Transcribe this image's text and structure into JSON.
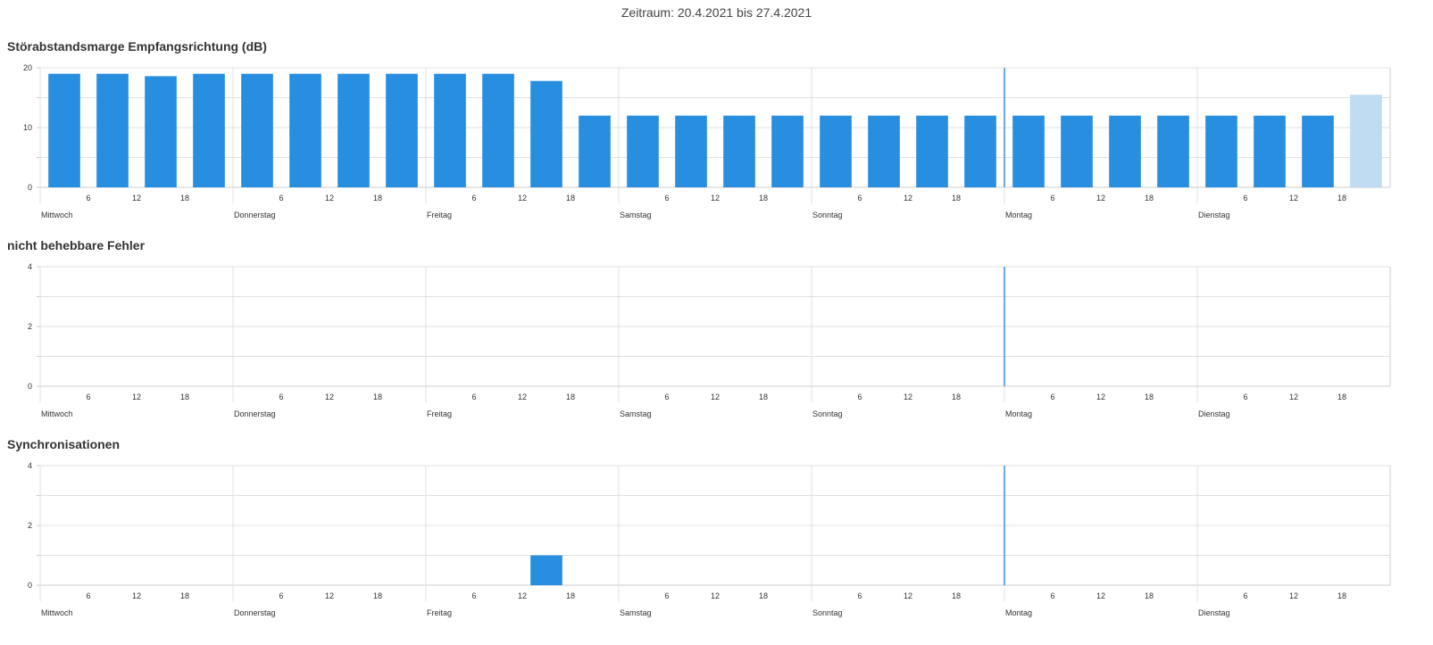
{
  "header": {
    "period": "Zeitraum: 20.4.2021 bis 27.4.2021"
  },
  "colors": {
    "bar": "#288ee0",
    "bar_partial": "#c0dcf3",
    "now_line": "#6aa9e6",
    "grid": "#e0e0e0",
    "axis": "#cccccc"
  },
  "chart_data": [
    {
      "type": "bar",
      "title": "Störabstandsmarge Empfangsrichtung (dB)",
      "days": [
        "Mittwoch",
        "Donnerstag",
        "Freitag",
        "Samstag",
        "Sonntag",
        "Montag",
        "Dienstag"
      ],
      "hour_ticks": [
        "6",
        "12",
        "18"
      ],
      "y_ticks": [
        "0",
        "10",
        "20"
      ],
      "ylim": [
        0,
        20
      ],
      "bin_hours": 6,
      "values": [
        19,
        19,
        18.6,
        19,
        19,
        19,
        19,
        19,
        19,
        19,
        17.8,
        12,
        12,
        12,
        12,
        12,
        12,
        12,
        12,
        12,
        12,
        12,
        12,
        12,
        12,
        12,
        12,
        15.5
      ],
      "partial_last": true,
      "now_line_day": 5
    },
    {
      "type": "bar",
      "title": "nicht behebbare Fehler",
      "days": [
        "Mittwoch",
        "Donnerstag",
        "Freitag",
        "Samstag",
        "Sonntag",
        "Montag",
        "Dienstag"
      ],
      "hour_ticks": [
        "6",
        "12",
        "18"
      ],
      "y_ticks": [
        "0",
        "2",
        "4"
      ],
      "ylim": [
        0,
        4
      ],
      "bin_hours": 6,
      "values": [
        0,
        0,
        0,
        0,
        0,
        0,
        0,
        0,
        0,
        0,
        0,
        0,
        0,
        0,
        0,
        0,
        0,
        0,
        0,
        0,
        0,
        0,
        0,
        0,
        0,
        0,
        0,
        0
      ],
      "partial_last": false,
      "now_line_day": 5
    },
    {
      "type": "bar",
      "title": "Synchronisationen",
      "days": [
        "Mittwoch",
        "Donnerstag",
        "Freitag",
        "Samstag",
        "Sonntag",
        "Montag",
        "Dienstag"
      ],
      "hour_ticks": [
        "6",
        "12",
        "18"
      ],
      "y_ticks": [
        "0",
        "2",
        "4"
      ],
      "ylim": [
        0,
        4
      ],
      "bin_hours": 6,
      "values": [
        0,
        0,
        0,
        0,
        0,
        0,
        0,
        0,
        0,
        0,
        1,
        0,
        0,
        0,
        0,
        0,
        0,
        0,
        0,
        0,
        0,
        0,
        0,
        0,
        0,
        0,
        0,
        0
      ],
      "partial_last": false,
      "now_line_day": 5
    }
  ]
}
